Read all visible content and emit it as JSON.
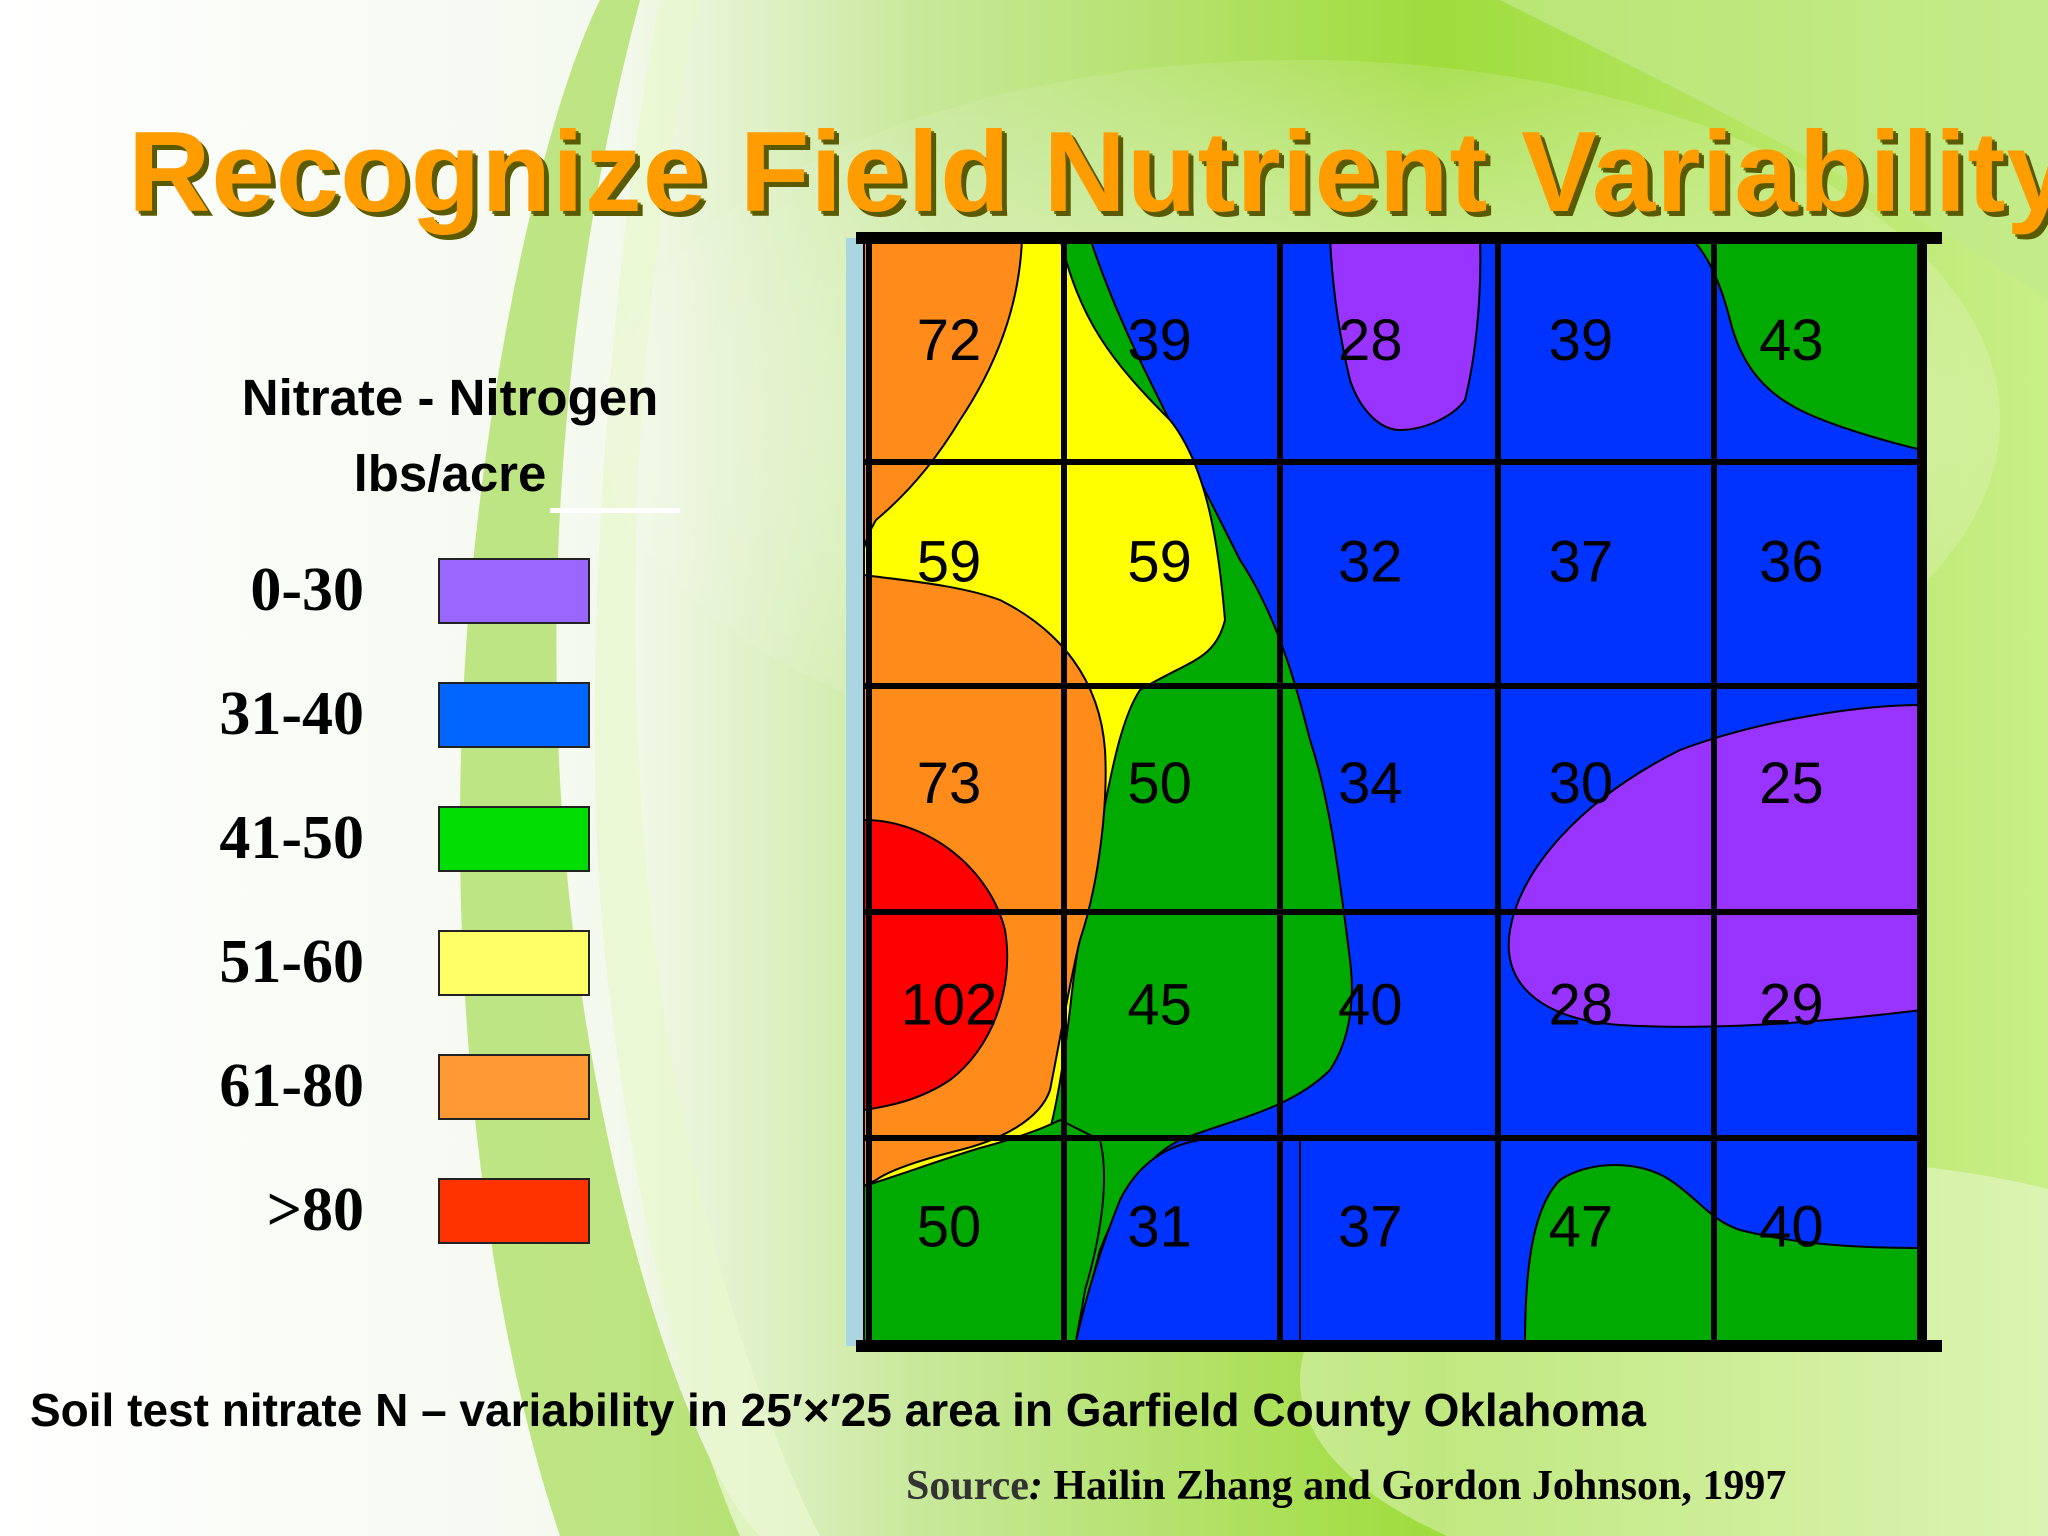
{
  "slide": {
    "title": "Recognize Field Nutrient Variability",
    "caption": "Soil test nitrate N – variability in 25′×′25 area in Garfield County Oklahoma",
    "source_label": "Source",
    "source_colon": ":",
    "source_text": " Hailin Zhang and Gordon Johnson, 1997"
  },
  "legend": {
    "title_line1": "Nitrate - Nitrogen",
    "title_line2": "lbs/acre",
    "items": [
      {
        "label": "0-30",
        "color": "#9966ff"
      },
      {
        "label": "31-40",
        "color": "#0066ff"
      },
      {
        "label": "41-50",
        "color": "#00dd00"
      },
      {
        "label": "51-60",
        "color": "#ffff66"
      },
      {
        "label": "61-80",
        "color": "#ff9933"
      },
      {
        "label": ">80",
        "color": "#ff3300"
      }
    ]
  },
  "chart_data": {
    "type": "heatmap",
    "title": "",
    "rows": 5,
    "cols": 5,
    "values": [
      [
        72,
        39,
        28,
        39,
        43
      ],
      [
        59,
        59,
        32,
        37,
        36
      ],
      [
        73,
        50,
        34,
        30,
        25
      ],
      [
        102,
        45,
        40,
        28,
        29
      ],
      [
        50,
        31,
        37,
        47,
        40
      ]
    ],
    "cell_labels": [
      [
        "72",
        "39",
        "28",
        "39",
        "43"
      ],
      [
        "59",
        "59",
        "32",
        "37",
        "36"
      ],
      [
        "73",
        "50",
        "34",
        "30",
        "25"
      ],
      [
        "102",
        "45",
        "40",
        "28",
        "29"
      ],
      [
        "50",
        "31",
        "37",
        "47",
        "40"
      ]
    ],
    "zone_colors": {
      "0-30": "#9933ff",
      "31-40": "#0033ff",
      "41-50": "#00aa00",
      "51-60": "#ffff00",
      "61-80": "#ff8c1a",
      ">80": "#ff0000"
    },
    "grid": true
  }
}
